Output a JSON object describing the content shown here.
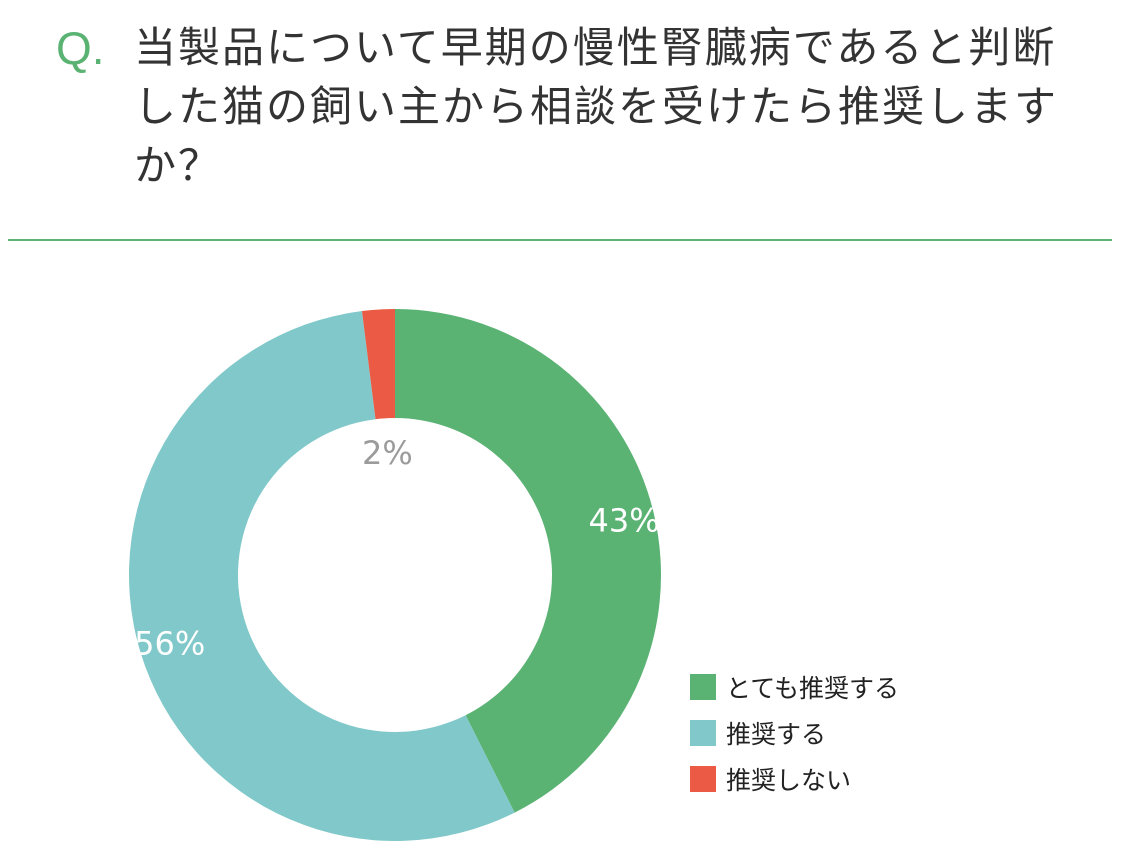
{
  "question": {
    "mark": "Q.",
    "text": "当製品について早期の慢性腎臓病であると判断した猫の飼い主から相談を受けたら推奨しますか？"
  },
  "chart_data": {
    "type": "pie",
    "donut": true,
    "start_angle_deg": 0,
    "direction": "clockwise",
    "series": [
      {
        "name": "とても推奨する",
        "value": 43,
        "label": "43%",
        "color": "#5ab273",
        "label_color": "#ffffff"
      },
      {
        "name": "推奨する",
        "value": 56,
        "label": "56%",
        "color": "#80c8c9",
        "label_color": "#ffffff"
      },
      {
        "name": "推奨しない",
        "value": 2,
        "label": "2%",
        "color": "#ea5a44",
        "label_color": "#9b9b9b"
      }
    ],
    "legend": "bottom-right"
  }
}
